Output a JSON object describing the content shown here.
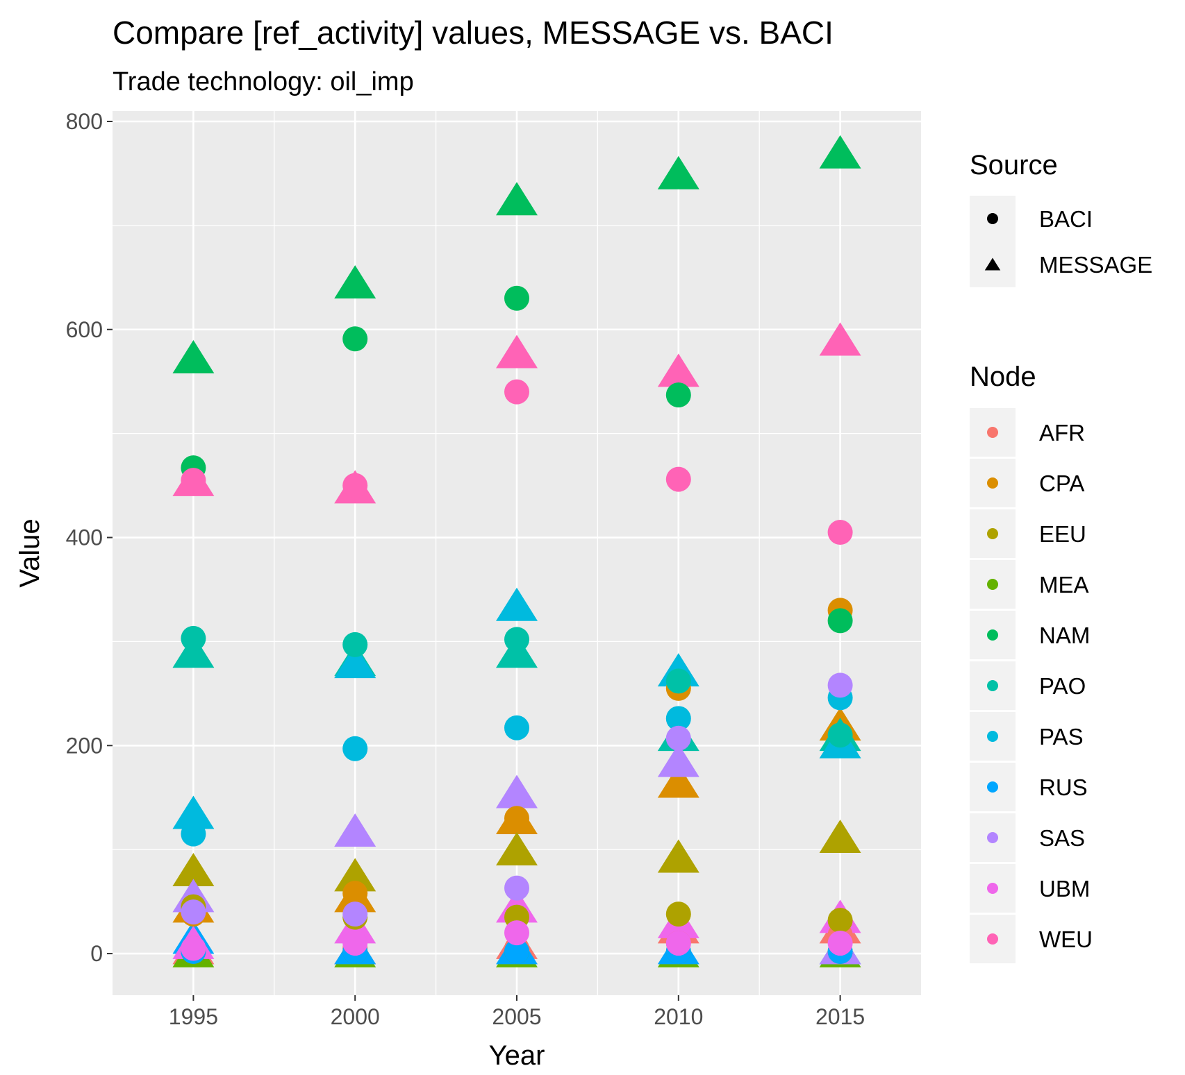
{
  "chart_data": {
    "type": "scatter",
    "title": "Compare [ref_activity] values, MESSAGE vs. BACI",
    "subtitle": "Trade technology: oil_imp",
    "xlabel": "Year",
    "ylabel": "Value",
    "xlim": [
      1992.5,
      2017.5
    ],
    "ylim": [
      -40,
      810
    ],
    "x_ticks": [
      1995,
      2000,
      2005,
      2010,
      2015
    ],
    "y_ticks": [
      0,
      200,
      400,
      600,
      800
    ],
    "grid": true,
    "legend_position": "right",
    "background": "#ebebeb",
    "shape_legend": {
      "title": "Source",
      "entries": [
        {
          "label": "BACI",
          "shape": "circle"
        },
        {
          "label": "MESSAGE",
          "shape": "triangle"
        }
      ]
    },
    "color_legend": {
      "title": "Node",
      "entries": [
        {
          "label": "AFR",
          "color": "#F8766D"
        },
        {
          "label": "CPA",
          "color": "#DB8E00"
        },
        {
          "label": "EEU",
          "color": "#AEA200"
        },
        {
          "label": "MEA",
          "color": "#64B200"
        },
        {
          "label": "NAM",
          "color": "#00BD5C"
        },
        {
          "label": "PAO",
          "color": "#00C1A7"
        },
        {
          "label": "PAS",
          "color": "#00BADE"
        },
        {
          "label": "RUS",
          "color": "#00A6FF"
        },
        {
          "label": "SAS",
          "color": "#B385FF"
        },
        {
          "label": "UBM",
          "color": "#EF67EB"
        },
        {
          "label": "WEU",
          "color": "#FF63B6"
        }
      ]
    },
    "points": [
      {
        "year": 1995,
        "value": 5,
        "node": "AFR",
        "source": "BACI"
      },
      {
        "year": 1995,
        "value": 5,
        "node": "AFR",
        "source": "MESSAGE"
      },
      {
        "year": 1995,
        "value": 38,
        "node": "CPA",
        "source": "BACI"
      },
      {
        "year": 1995,
        "value": 45,
        "node": "CPA",
        "source": "MESSAGE"
      },
      {
        "year": 1995,
        "value": 45,
        "node": "EEU",
        "source": "BACI"
      },
      {
        "year": 1995,
        "value": 80,
        "node": "EEU",
        "source": "MESSAGE"
      },
      {
        "year": 1995,
        "value": 2,
        "node": "MEA",
        "source": "BACI"
      },
      {
        "year": 1995,
        "value": 2,
        "node": "MEA",
        "source": "MESSAGE"
      },
      {
        "year": 1995,
        "value": 467,
        "node": "NAM",
        "source": "BACI"
      },
      {
        "year": 1995,
        "value": 573,
        "node": "NAM",
        "source": "MESSAGE"
      },
      {
        "year": 1995,
        "value": 303,
        "node": "PAO",
        "source": "BACI"
      },
      {
        "year": 1995,
        "value": 290,
        "node": "PAO",
        "source": "MESSAGE"
      },
      {
        "year": 1995,
        "value": 115,
        "node": "PAS",
        "source": "BACI"
      },
      {
        "year": 1995,
        "value": 135,
        "node": "PAS",
        "source": "MESSAGE"
      },
      {
        "year": 1995,
        "value": 2,
        "node": "RUS",
        "source": "BACI"
      },
      {
        "year": 1995,
        "value": 15,
        "node": "RUS",
        "source": "MESSAGE"
      },
      {
        "year": 1995,
        "value": 40,
        "node": "SAS",
        "source": "BACI"
      },
      {
        "year": 1995,
        "value": 55,
        "node": "SAS",
        "source": "MESSAGE"
      },
      {
        "year": 1995,
        "value": 5,
        "node": "UBM",
        "source": "BACI"
      },
      {
        "year": 1995,
        "value": 10,
        "node": "UBM",
        "source": "MESSAGE"
      },
      {
        "year": 1995,
        "value": 455,
        "node": "WEU",
        "source": "BACI"
      },
      {
        "year": 1995,
        "value": 455,
        "node": "WEU",
        "source": "MESSAGE"
      },
      {
        "year": 2000,
        "value": 5,
        "node": "AFR",
        "source": "BACI"
      },
      {
        "year": 2000,
        "value": 5,
        "node": "AFR",
        "source": "MESSAGE"
      },
      {
        "year": 2000,
        "value": 58,
        "node": "CPA",
        "source": "BACI"
      },
      {
        "year": 2000,
        "value": 55,
        "node": "CPA",
        "source": "MESSAGE"
      },
      {
        "year": 2000,
        "value": 35,
        "node": "EEU",
        "source": "BACI"
      },
      {
        "year": 2000,
        "value": 75,
        "node": "EEU",
        "source": "MESSAGE"
      },
      {
        "year": 2000,
        "value": 2,
        "node": "MEA",
        "source": "BACI"
      },
      {
        "year": 2000,
        "value": 2,
        "node": "MEA",
        "source": "MESSAGE"
      },
      {
        "year": 2000,
        "value": 591,
        "node": "NAM",
        "source": "BACI"
      },
      {
        "year": 2000,
        "value": 645,
        "node": "NAM",
        "source": "MESSAGE"
      },
      {
        "year": 2000,
        "value": 297,
        "node": "PAO",
        "source": "BACI"
      },
      {
        "year": 2000,
        "value": 282,
        "node": "PAO",
        "source": "MESSAGE"
      },
      {
        "year": 2000,
        "value": 197,
        "node": "PAS",
        "source": "BACI"
      },
      {
        "year": 2000,
        "value": 280,
        "node": "PAS",
        "source": "MESSAGE"
      },
      {
        "year": 2000,
        "value": 2,
        "node": "RUS",
        "source": "BACI"
      },
      {
        "year": 2000,
        "value": 5,
        "node": "RUS",
        "source": "MESSAGE"
      },
      {
        "year": 2000,
        "value": 38,
        "node": "SAS",
        "source": "BACI"
      },
      {
        "year": 2000,
        "value": 118,
        "node": "SAS",
        "source": "MESSAGE"
      },
      {
        "year": 2000,
        "value": 10,
        "node": "UBM",
        "source": "BACI"
      },
      {
        "year": 2000,
        "value": 25,
        "node": "UBM",
        "source": "MESSAGE"
      },
      {
        "year": 2000,
        "value": 450,
        "node": "WEU",
        "source": "BACI"
      },
      {
        "year": 2000,
        "value": 448,
        "node": "WEU",
        "source": "MESSAGE"
      },
      {
        "year": 2005,
        "value": 5,
        "node": "AFR",
        "source": "BACI"
      },
      {
        "year": 2005,
        "value": 10,
        "node": "AFR",
        "source": "MESSAGE"
      },
      {
        "year": 2005,
        "value": 130,
        "node": "CPA",
        "source": "BACI"
      },
      {
        "year": 2005,
        "value": 130,
        "node": "CPA",
        "source": "MESSAGE"
      },
      {
        "year": 2005,
        "value": 35,
        "node": "EEU",
        "source": "BACI"
      },
      {
        "year": 2005,
        "value": 100,
        "node": "EEU",
        "source": "MESSAGE"
      },
      {
        "year": 2005,
        "value": 2,
        "node": "MEA",
        "source": "BACI"
      },
      {
        "year": 2005,
        "value": 2,
        "node": "MEA",
        "source": "MESSAGE"
      },
      {
        "year": 2005,
        "value": 630,
        "node": "NAM",
        "source": "BACI"
      },
      {
        "year": 2005,
        "value": 725,
        "node": "NAM",
        "source": "MESSAGE"
      },
      {
        "year": 2005,
        "value": 302,
        "node": "PAO",
        "source": "BACI"
      },
      {
        "year": 2005,
        "value": 290,
        "node": "PAO",
        "source": "MESSAGE"
      },
      {
        "year": 2005,
        "value": 217,
        "node": "PAS",
        "source": "BACI"
      },
      {
        "year": 2005,
        "value": 335,
        "node": "PAS",
        "source": "MESSAGE"
      },
      {
        "year": 2005,
        "value": 2,
        "node": "RUS",
        "source": "BACI"
      },
      {
        "year": 2005,
        "value": 5,
        "node": "RUS",
        "source": "MESSAGE"
      },
      {
        "year": 2005,
        "value": 63,
        "node": "SAS",
        "source": "BACI"
      },
      {
        "year": 2005,
        "value": 155,
        "node": "SAS",
        "source": "MESSAGE"
      },
      {
        "year": 2005,
        "value": 20,
        "node": "UBM",
        "source": "BACI"
      },
      {
        "year": 2005,
        "value": 45,
        "node": "UBM",
        "source": "MESSAGE"
      },
      {
        "year": 2005,
        "value": 540,
        "node": "WEU",
        "source": "BACI"
      },
      {
        "year": 2005,
        "value": 578,
        "node": "WEU",
        "source": "MESSAGE"
      },
      {
        "year": 2010,
        "value": 10,
        "node": "AFR",
        "source": "BACI"
      },
      {
        "year": 2010,
        "value": 25,
        "node": "AFR",
        "source": "MESSAGE"
      },
      {
        "year": 2010,
        "value": 255,
        "node": "CPA",
        "source": "BACI"
      },
      {
        "year": 2010,
        "value": 165,
        "node": "CPA",
        "source": "MESSAGE"
      },
      {
        "year": 2010,
        "value": 38,
        "node": "EEU",
        "source": "BACI"
      },
      {
        "year": 2010,
        "value": 93,
        "node": "EEU",
        "source": "MESSAGE"
      },
      {
        "year": 2010,
        "value": 2,
        "node": "MEA",
        "source": "BACI"
      },
      {
        "year": 2010,
        "value": 2,
        "node": "MEA",
        "source": "MESSAGE"
      },
      {
        "year": 2010,
        "value": 537,
        "node": "NAM",
        "source": "BACI"
      },
      {
        "year": 2010,
        "value": 750,
        "node": "NAM",
        "source": "MESSAGE"
      },
      {
        "year": 2010,
        "value": 262,
        "node": "PAO",
        "source": "BACI"
      },
      {
        "year": 2010,
        "value": 210,
        "node": "PAO",
        "source": "MESSAGE"
      },
      {
        "year": 2010,
        "value": 226,
        "node": "PAS",
        "source": "BACI"
      },
      {
        "year": 2010,
        "value": 272,
        "node": "PAS",
        "source": "MESSAGE"
      },
      {
        "year": 2010,
        "value": 2,
        "node": "RUS",
        "source": "BACI"
      },
      {
        "year": 2010,
        "value": 5,
        "node": "RUS",
        "source": "MESSAGE"
      },
      {
        "year": 2010,
        "value": 207,
        "node": "SAS",
        "source": "BACI"
      },
      {
        "year": 2010,
        "value": 185,
        "node": "SAS",
        "source": "MESSAGE"
      },
      {
        "year": 2010,
        "value": 10,
        "node": "UBM",
        "source": "BACI"
      },
      {
        "year": 2010,
        "value": 30,
        "node": "UBM",
        "source": "MESSAGE"
      },
      {
        "year": 2010,
        "value": 456,
        "node": "WEU",
        "source": "BACI"
      },
      {
        "year": 2010,
        "value": 560,
        "node": "WEU",
        "source": "MESSAGE"
      },
      {
        "year": 2015,
        "value": 18,
        "node": "AFR",
        "source": "BACI"
      },
      {
        "year": 2015,
        "value": 25,
        "node": "AFR",
        "source": "MESSAGE"
      },
      {
        "year": 2015,
        "value": 330,
        "node": "CPA",
        "source": "BACI"
      },
      {
        "year": 2015,
        "value": 220,
        "node": "CPA",
        "source": "MESSAGE"
      },
      {
        "year": 2015,
        "value": 32,
        "node": "EEU",
        "source": "BACI"
      },
      {
        "year": 2015,
        "value": 112,
        "node": "EEU",
        "source": "MESSAGE"
      },
      {
        "year": 2015,
        "value": 2,
        "node": "MEA",
        "source": "BACI"
      },
      {
        "year": 2015,
        "value": 2,
        "node": "MEA",
        "source": "MESSAGE"
      },
      {
        "year": 2015,
        "value": 320,
        "node": "NAM",
        "source": "BACI"
      },
      {
        "year": 2015,
        "value": 770,
        "node": "NAM",
        "source": "MESSAGE"
      },
      {
        "year": 2015,
        "value": 210,
        "node": "PAO",
        "source": "BACI"
      },
      {
        "year": 2015,
        "value": 210,
        "node": "PAO",
        "source": "MESSAGE"
      },
      {
        "year": 2015,
        "value": 246,
        "node": "PAS",
        "source": "BACI"
      },
      {
        "year": 2015,
        "value": 203,
        "node": "PAS",
        "source": "MESSAGE"
      },
      {
        "year": 2015,
        "value": 2,
        "node": "RUS",
        "source": "BACI"
      },
      {
        "year": 2015,
        "value": 5,
        "node": "RUS",
        "source": "MESSAGE"
      },
      {
        "year": 2015,
        "value": 258,
        "node": "SAS",
        "source": "BACI"
      },
      {
        "year": 2015,
        "value": 5,
        "node": "SAS",
        "source": "MESSAGE"
      },
      {
        "year": 2015,
        "value": 10,
        "node": "UBM",
        "source": "BACI"
      },
      {
        "year": 2015,
        "value": 35,
        "node": "UBM",
        "source": "MESSAGE"
      },
      {
        "year": 2015,
        "value": 405,
        "node": "WEU",
        "source": "BACI"
      },
      {
        "year": 2015,
        "value": 590,
        "node": "WEU",
        "source": "MESSAGE"
      }
    ]
  }
}
